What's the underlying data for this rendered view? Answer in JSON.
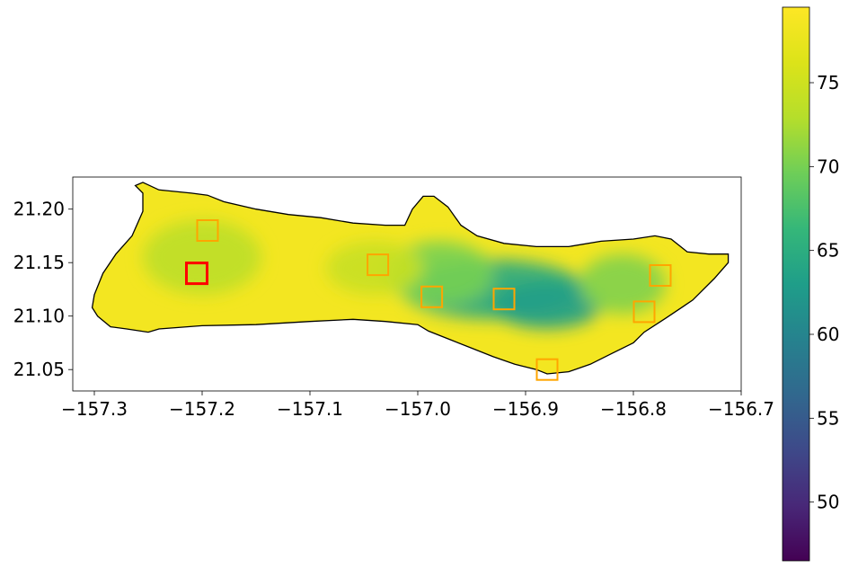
{
  "chart_data": {
    "type": "heatmap",
    "title": "",
    "xlabel": "",
    "ylabel": "",
    "xlim": [
      -157.32,
      -156.7
    ],
    "ylim": [
      21.03,
      21.23
    ],
    "x_ticks": [
      -157.3,
      -157.2,
      -157.1,
      -157.0,
      -156.9,
      -156.8,
      -156.7
    ],
    "x_tick_labels": [
      "−157.3",
      "−157.2",
      "−157.1",
      "−157.0",
      "−156.9",
      "−156.8",
      "−156.7"
    ],
    "y_ticks": [
      21.05,
      21.1,
      21.15,
      21.2
    ],
    "y_tick_labels": [
      "21.05",
      "21.10",
      "21.15",
      "21.20"
    ],
    "colorbar": {
      "colormap": "viridis",
      "range": [
        46.5,
        79.5
      ],
      "ticks": [
        50,
        55,
        60,
        65,
        70,
        75
      ],
      "tick_labels": [
        "50",
        "55",
        "60",
        "65",
        "70",
        "75"
      ]
    },
    "highlighted_site": {
      "lon": -157.205,
      "lat": 21.14,
      "color": "#ff0000"
    },
    "sites": [
      {
        "lon": -157.195,
        "lat": 21.18
      },
      {
        "lon": -157.037,
        "lat": 21.148
      },
      {
        "lon": -156.987,
        "lat": 21.118
      },
      {
        "lon": -156.92,
        "lat": 21.116
      },
      {
        "lon": -156.88,
        "lat": 21.05
      },
      {
        "lon": -156.79,
        "lat": 21.104
      },
      {
        "lon": -156.775,
        "lat": 21.138
      }
    ],
    "site_color": "#ffa500",
    "outline": [
      [
        -157.297,
        21.1
      ],
      [
        -157.285,
        21.09
      ],
      [
        -157.27,
        21.088
      ],
      [
        -157.25,
        21.085
      ],
      [
        -157.24,
        21.088
      ],
      [
        -157.2,
        21.091
      ],
      [
        -157.15,
        21.092
      ],
      [
        -157.1,
        21.095
      ],
      [
        -157.06,
        21.097
      ],
      [
        -157.03,
        21.095
      ],
      [
        -157.0,
        21.092
      ],
      [
        -156.99,
        21.086
      ],
      [
        -156.97,
        21.078
      ],
      [
        -156.95,
        21.07
      ],
      [
        -156.93,
        21.062
      ],
      [
        -156.91,
        21.055
      ],
      [
        -156.89,
        21.05
      ],
      [
        -156.88,
        21.046
      ],
      [
        -156.86,
        21.048
      ],
      [
        -156.84,
        21.055
      ],
      [
        -156.82,
        21.065
      ],
      [
        -156.8,
        21.075
      ],
      [
        -156.79,
        21.085
      ],
      [
        -156.77,
        21.098
      ],
      [
        -156.745,
        21.115
      ],
      [
        -156.725,
        21.135
      ],
      [
        -156.712,
        21.15
      ],
      [
        -156.712,
        21.158
      ],
      [
        -156.73,
        21.158
      ],
      [
        -156.75,
        21.16
      ],
      [
        -156.765,
        21.172
      ],
      [
        -156.78,
        21.175
      ],
      [
        -156.8,
        21.172
      ],
      [
        -156.83,
        21.17
      ],
      [
        -156.86,
        21.165
      ],
      [
        -156.89,
        21.165
      ],
      [
        -156.92,
        21.168
      ],
      [
        -156.945,
        21.175
      ],
      [
        -156.96,
        21.185
      ],
      [
        -156.972,
        21.202
      ],
      [
        -156.985,
        21.212
      ],
      [
        -156.995,
        21.212
      ],
      [
        -157.005,
        21.2
      ],
      [
        -157.012,
        21.185
      ],
      [
        -157.03,
        21.185
      ],
      [
        -157.06,
        21.187
      ],
      [
        -157.09,
        21.192
      ],
      [
        -157.12,
        21.195
      ],
      [
        -157.15,
        21.2
      ],
      [
        -157.18,
        21.207
      ],
      [
        -157.195,
        21.213
      ],
      [
        -157.21,
        21.215
      ],
      [
        -157.24,
        21.218
      ],
      [
        -157.255,
        21.225
      ],
      [
        -157.262,
        21.222
      ],
      [
        -157.255,
        21.215
      ],
      [
        -157.255,
        21.198
      ],
      [
        -157.265,
        21.175
      ],
      [
        -157.28,
        21.158
      ],
      [
        -157.292,
        21.14
      ],
      [
        -157.3,
        21.12
      ],
      [
        -157.302,
        21.108
      ]
    ],
    "low_zones": [
      {
        "lon": -156.93,
        "lat": 21.125,
        "rx": 0.085,
        "ry": 0.028,
        "value": 64.5
      },
      {
        "lon": -156.88,
        "lat": 21.11,
        "rx": 0.05,
        "ry": 0.022,
        "value": 63
      },
      {
        "lon": -156.98,
        "lat": 21.14,
        "rx": 0.05,
        "ry": 0.03,
        "value": 70
      },
      {
        "lon": -156.81,
        "lat": 21.13,
        "rx": 0.04,
        "ry": 0.028,
        "value": 70.5
      },
      {
        "lon": -157.2,
        "lat": 21.155,
        "rx": 0.055,
        "ry": 0.035,
        "value": 73.5
      },
      {
        "lon": -157.04,
        "lat": 21.145,
        "rx": 0.045,
        "ry": 0.025,
        "value": 74.5
      }
    ]
  }
}
